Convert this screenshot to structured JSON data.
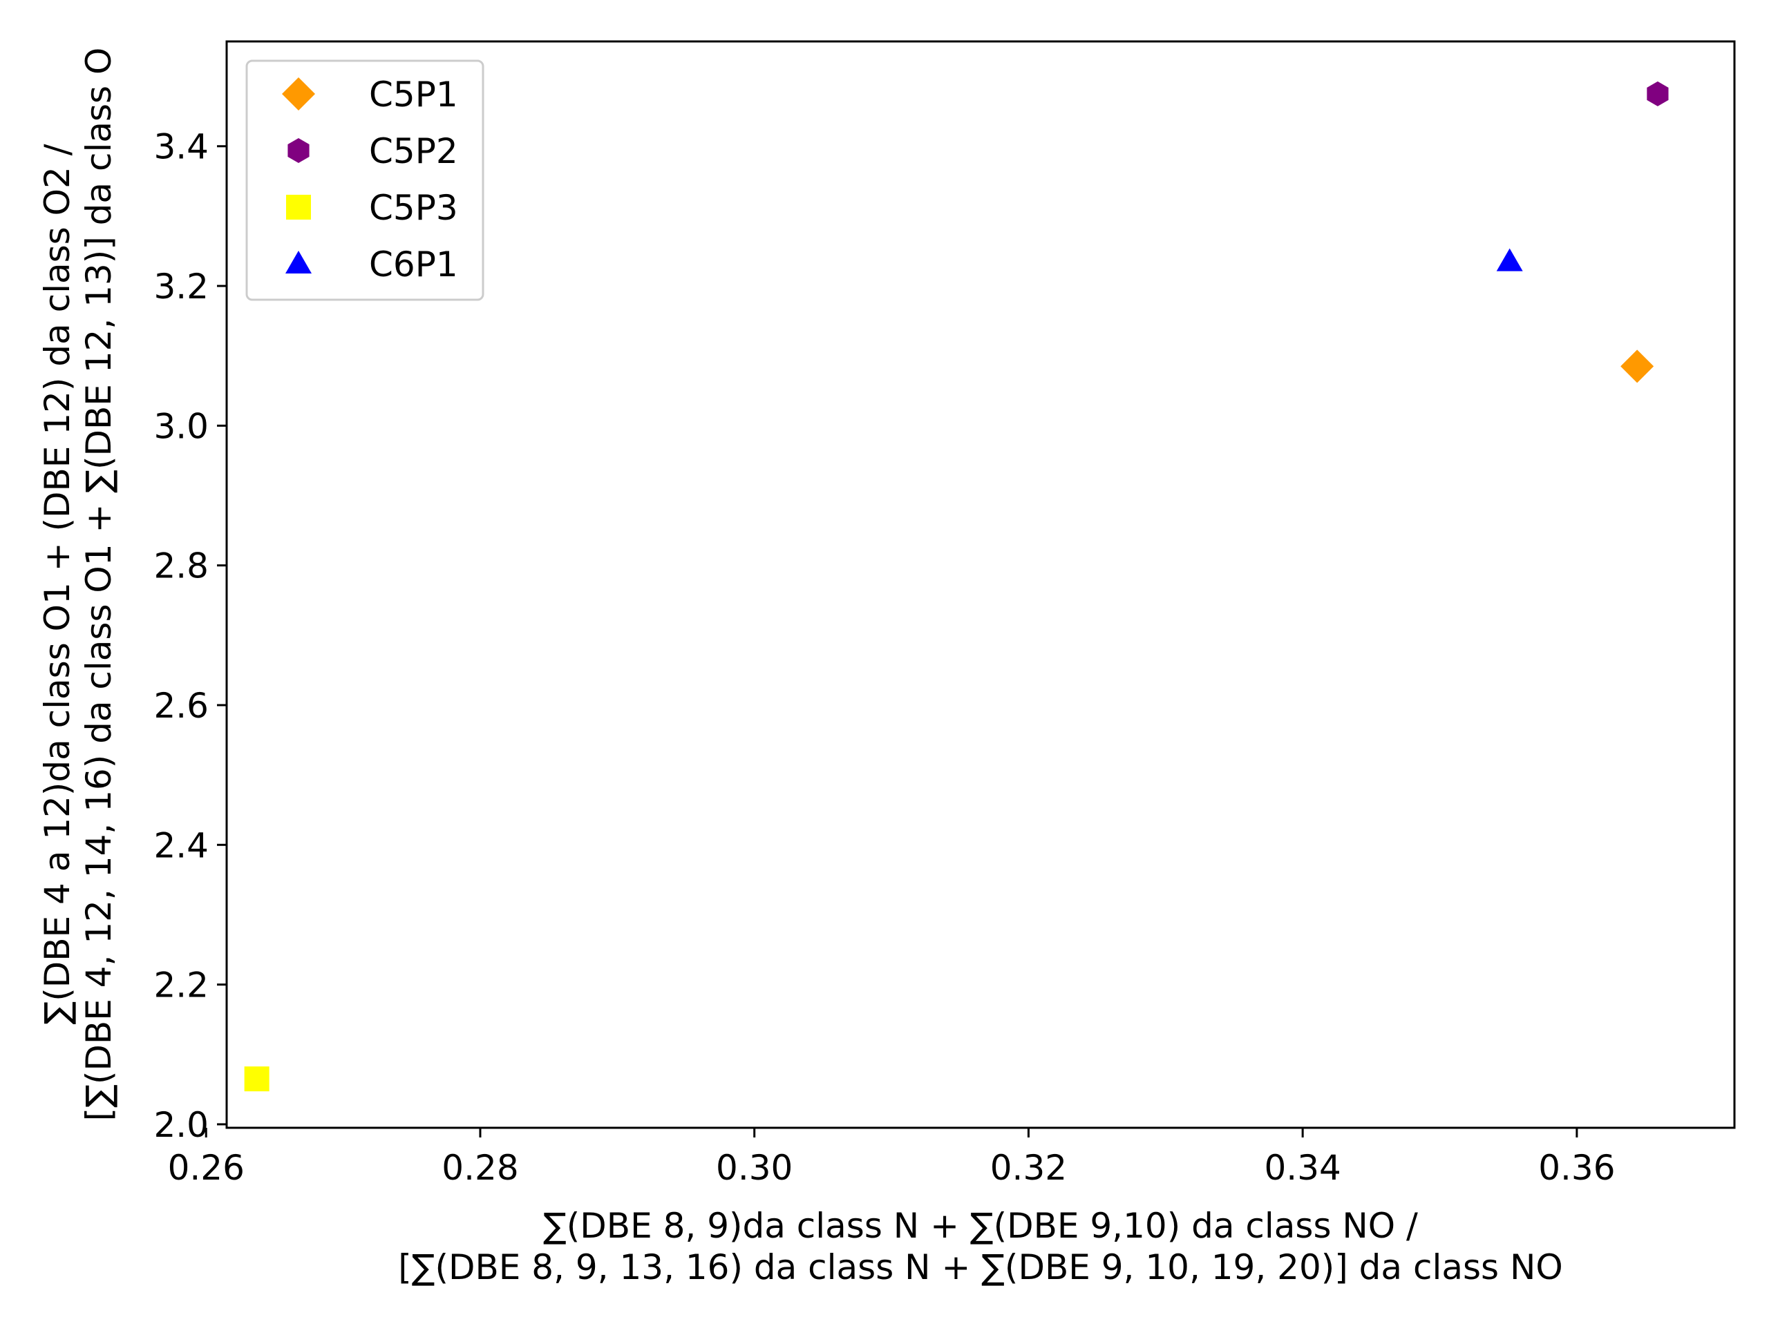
{
  "chart_data": {
    "type": "scatter",
    "title": "",
    "xlabel_lines": [
      "∑(DBE 8, 9)da class N + ∑(DBE 9,10) da class NO /",
      "[∑(DBE 8, 9, 13, 16) da class N + ∑(DBE 9, 10, 19, 20)] da class NO"
    ],
    "ylabel_lines": [
      "∑(DBE 4 a 12)da class O1 + (DBE 12) da class O2 /",
      "[∑(DBE 4, 12, 14, 16) da class O1 + ∑(DBE 12, 13)] da class O"
    ],
    "xlim": [
      0.2615,
      0.3715
    ],
    "ylim": [
      1.995,
      3.55
    ],
    "xticks": [
      0.26,
      0.28,
      0.3,
      0.32,
      0.34,
      0.36
    ],
    "xtick_labels": [
      "0.26",
      "0.28",
      "0.30",
      "0.32",
      "0.34",
      "0.36"
    ],
    "yticks": [
      2.0,
      2.2,
      2.4,
      2.6,
      2.8,
      3.0,
      3.2,
      3.4
    ],
    "ytick_labels": [
      "2.0",
      "2.2",
      "2.4",
      "2.6",
      "2.8",
      "3.0",
      "3.2",
      "3.4"
    ],
    "grid": false,
    "legend_position": "top-left",
    "series": [
      {
        "name": "C5P1",
        "marker": "diamond",
        "color": "#ff9900",
        "x": [
          0.3644
        ],
        "y": [
          3.085
        ]
      },
      {
        "name": "C5P2",
        "marker": "hexagon",
        "color": "#800080",
        "x": [
          0.3659
        ],
        "y": [
          3.475
        ]
      },
      {
        "name": "C5P3",
        "marker": "square",
        "color": "#ffff00",
        "x": [
          0.2637
        ],
        "y": [
          2.065
        ]
      },
      {
        "name": "C6P1",
        "marker": "triangle",
        "color": "#0000ff",
        "x": [
          0.3551
        ],
        "y": [
          3.235
        ]
      }
    ]
  }
}
